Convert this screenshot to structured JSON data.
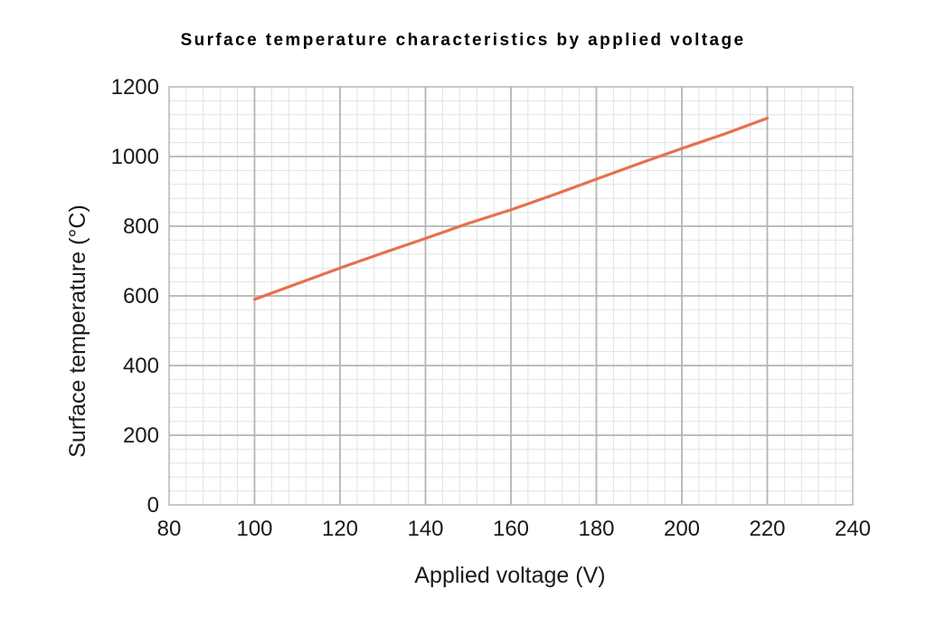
{
  "chart_data": {
    "type": "line",
    "title": "Surface temperature characteristics by applied voltage",
    "xlabel": "Applied voltage (V)",
    "ylabel": "Surface temperature (°C)",
    "xlim": [
      80,
      240
    ],
    "ylim": [
      0,
      1200
    ],
    "x_ticks": [
      "80",
      "100",
      "120",
      "140",
      "160",
      "180",
      "200",
      "220",
      "240"
    ],
    "y_ticks": [
      "0",
      "200",
      "400",
      "600",
      "800",
      "1000",
      "1200"
    ],
    "grid": true,
    "series": [
      {
        "color": "#e8704a",
        "x": [
          100,
          110,
          120,
          130,
          140,
          150,
          160,
          170,
          180,
          190,
          200,
          210,
          220
        ],
        "y": [
          590,
          635,
          680,
          723,
          765,
          808,
          847,
          890,
          935,
          980,
          1023,
          1065,
          1110
        ]
      }
    ]
  }
}
